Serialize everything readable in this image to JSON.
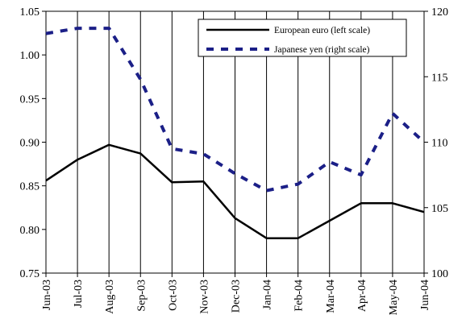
{
  "chart_data": {
    "type": "line",
    "title": "",
    "categories": [
      "Jun-03",
      "Jul-03",
      "Aug-03",
      "Sep-03",
      "Oct-03",
      "Nov-03",
      "Dec-03",
      "Jan-04",
      "Feb-04",
      "Mar-04",
      "Apr-04",
      "May-04",
      "Jun-04"
    ],
    "series": [
      {
        "name": "European euro (left scale)",
        "axis": "left",
        "color": "#000000",
        "style": "solid",
        "values": [
          0.856,
          0.88,
          0.897,
          0.887,
          0.854,
          0.855,
          0.813,
          0.79,
          0.79,
          0.81,
          0.83,
          0.83,
          0.82
        ]
      },
      {
        "name": "Japanese yen (right scale)",
        "axis": "right",
        "color": "#1b1f87",
        "style": "dashed",
        "values": [
          118.3,
          118.7,
          118.7,
          114.8,
          109.5,
          109.1,
          107.6,
          106.3,
          106.8,
          108.5,
          107.5,
          112.2,
          110.0
        ]
      }
    ],
    "left_axis": {
      "ylim": [
        0.75,
        1.05
      ],
      "ticks": [
        "0.75",
        "0.80",
        "0.85",
        "0.90",
        "0.95",
        "1.00",
        "1.05"
      ]
    },
    "right_axis": {
      "ylim": [
        100,
        120
      ],
      "ticks": [
        "100",
        "105",
        "110",
        "115",
        "120"
      ]
    },
    "grid": "vertical",
    "legend_position": "top-right"
  }
}
